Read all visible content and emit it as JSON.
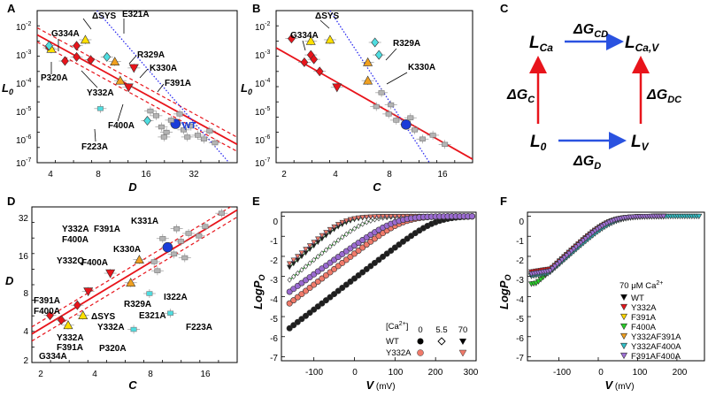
{
  "colors": {
    "fit": "#e8141b",
    "dotted": "#2a2af0",
    "diamond_red": "#e8141b",
    "triangle_yellow": "#ffe000",
    "triangle_orange": "#f0a020",
    "diamond_cyan": "#4fdde0",
    "square_cyan": "#3cc8cc",
    "wt_blue": "#1a3cd8",
    "grey": "#b4b4b4",
    "green": "#1e8a1e",
    "salmon": "#f07a6a",
    "purple": "#9a6ad0",
    "teal": "#30b0b8"
  },
  "panels": {
    "A": {
      "label": "A",
      "xlabel": "D",
      "ylabel": "L0",
      "ylabel_main": "L",
      "ylabel_sub": "0",
      "xticks": [
        "4",
        "8",
        "16",
        "32"
      ],
      "yticks_mant": [
        "10",
        "10",
        "10",
        "10",
        "10",
        "10"
      ],
      "yticks_exp": [
        "-2",
        "-3",
        "-4",
        "-5",
        "-6",
        "-7"
      ]
    },
    "B": {
      "label": "B",
      "xlabel": "C",
      "ylabel_main": "L",
      "ylabel_sub": "0",
      "xticks": [
        "2",
        "4",
        "8",
        "16"
      ],
      "yticks_mant": [
        "10",
        "10",
        "10",
        "10",
        "10",
        "10"
      ],
      "yticks_exp": [
        "-2",
        "-3",
        "-4",
        "-5",
        "-6",
        "-7"
      ]
    },
    "C": {
      "label": "C"
    },
    "D": {
      "label": "D",
      "xlabel": "C",
      "ylabel": "D",
      "xticks": [
        "2",
        "4",
        "8",
        "16"
      ],
      "yticks": [
        "32",
        "16",
        "8",
        "4",
        "2"
      ]
    },
    "E": {
      "label": "E",
      "xlabel": "V (mV)",
      "xlabel_var": "V",
      "xlabel_unit": " (mV)",
      "ylabel": "LogPO",
      "ylabel_main": "LogP",
      "ylabel_sub": "O",
      "xticks": [
        "-100",
        "0",
        "100",
        "200",
        "300"
      ],
      "yticks": [
        "0",
        "-1",
        "-2",
        "-3",
        "-4",
        "-5",
        "-6",
        "-7"
      ]
    },
    "F": {
      "label": "F",
      "xlabel_var": "V",
      "xlabel_unit": " (mV)",
      "ylabel_main": "LogP",
      "ylabel_sub": "O",
      "xticks": [
        "-100",
        "0",
        "100",
        "200"
      ],
      "yticks": [
        "0",
        "-1",
        "-2",
        "-3",
        "-4",
        "-5",
        "-6",
        "-7"
      ]
    }
  },
  "annotations": {
    "A": {
      "dsys": "ΔSYS",
      "e321a": "E321A",
      "g334a": "G334A",
      "r329a": "R329A",
      "k330a": "K330A",
      "f391a": "F391A",
      "p320a": "P320A",
      "y332a": "Y332A",
      "wt": "WT",
      "f400a": "F400A",
      "f223a": "F223A"
    },
    "B": {
      "dsys": "ΔSYS",
      "g334a": "G334A",
      "r329a": "R329A",
      "k330a": "K330A"
    },
    "D": {
      "y332a_f391a_top": "Y332A",
      "f391a_top": "F391A",
      "f400a_top": "F400A",
      "k331a": "K331A",
      "k330a": "K330A",
      "y332q": "Y332Q",
      "f400a_mid": "F400A",
      "f391a_left": "F391A",
      "f400a_left": "F400A",
      "dsys": "ΔSYS",
      "y332a_mid": "Y332A",
      "r329a": "R329A",
      "i322a": "I322A",
      "e321a": "E321A",
      "y332a_low": "Y332A",
      "f391a_low": "F391A",
      "g334a": "G334A",
      "p320a": "P320A",
      "f223a": "F223A"
    }
  },
  "scheme": {
    "l_ca_main": "L",
    "l_ca_sub": "Ca",
    "l_cav_main": "L",
    "l_cav_sub": "Ca,V",
    "l0_main": "L",
    "l0_sub": "0",
    "lv_main": "L",
    "lv_sub": "V",
    "dg_cd_main": "ΔG",
    "dg_cd_sub": "CD",
    "dg_c_main": "ΔG",
    "dg_c_sub": "C",
    "dg_dc_main": "ΔG",
    "dg_dc_sub": "DC",
    "dg_d_main": "ΔG",
    "dg_d_sub": "D"
  },
  "legend_E": {
    "ca_label": "[Ca2+]",
    "ca_main": "[Ca",
    "ca_sup": "2+",
    "ca_close": "]",
    "conc": [
      "0",
      "5.5",
      "70"
    ],
    "rows": [
      {
        "name": "WT"
      },
      {
        "name": "Y332A"
      }
    ]
  },
  "legend_F": {
    "title_main": "70 μM Ca",
    "title_sup": "2+",
    "entries": [
      {
        "name": "WT",
        "color": "#000000"
      },
      {
        "name": "Y332A",
        "color": "#e8141b"
      },
      {
        "name": "F391A",
        "color": "#ffd800"
      },
      {
        "name": "F400A",
        "color": "#28d028"
      },
      {
        "name": "Y332AF391A",
        "color": "#f0a020"
      },
      {
        "name": "Y332AF400A",
        "color": "#30c0c8"
      },
      {
        "name": "F391AF400A",
        "color": "#a070d8"
      }
    ]
  },
  "chart_data": [
    {
      "panel": "A",
      "type": "scatter",
      "xlabel": "D",
      "ylabel": "L0",
      "xscale": "log",
      "yscale": "log",
      "xlim": [
        3,
        40
      ],
      "ylim": [
        1e-07,
        0.01
      ],
      "fit_line": {
        "x": [
          3,
          40
        ],
        "y": [
          0.0016,
          4e-07
        ]
      },
      "dotted_line": {
        "x": [
          6.5,
          36
        ],
        "y": [
          0.01,
          1e-07
        ]
      },
      "points": [
        {
          "x": 3.5,
          "y": 0.0006,
          "shape": "diamond",
          "color": "red"
        },
        {
          "x": 3.6,
          "y": 0.00055,
          "shape": "triangle",
          "color": "yellow"
        },
        {
          "x": 3.5,
          "y": 0.0007,
          "shape": "diamond",
          "color": "cyan"
        },
        {
          "x": 4.3,
          "y": 0.00022,
          "shape": "diamond",
          "color": "red"
        },
        {
          "x": 5.0,
          "y": 0.0003,
          "shape": "diamond",
          "color": "red"
        },
        {
          "x": 5.0,
          "y": 0.0007,
          "shape": "diamond",
          "color": "red"
        },
        {
          "x": 5.6,
          "y": 0.0011,
          "shape": "triangle",
          "color": "yellow"
        },
        {
          "x": 6.0,
          "y": 0.00024,
          "shape": "diamond",
          "color": "red"
        },
        {
          "x": 7.4,
          "y": 0.0003,
          "shape": "diamond",
          "color": "cyan"
        },
        {
          "x": 8.2,
          "y": 0.00021,
          "shape": "triangle",
          "color": "orange"
        },
        {
          "x": 8.8,
          "y": 5e-05,
          "shape": "triangle",
          "color": "orange"
        },
        {
          "x": 10.5,
          "y": 0.00013,
          "shape": "triangle_down",
          "color": "red"
        },
        {
          "x": 9.8,
          "y": 3e-05,
          "shape": "triangle_down",
          "color": "red"
        },
        {
          "x": 6.8,
          "y": 6e-06,
          "shape": "square",
          "color": "cyan"
        },
        {
          "x": 12.5,
          "y": 2.4e-06,
          "shape": "diamond",
          "color": "cyan"
        },
        {
          "x": 18,
          "y": 1.9e-06,
          "shape": "circle",
          "color": "wt_blue"
        },
        {
          "x": 15,
          "y": 1.5e-06,
          "shape": "square",
          "color": "grey"
        },
        {
          "x": 16,
          "y": 1e-06,
          "shape": "square",
          "color": "grey"
        },
        {
          "x": 17,
          "y": 2.5e-06,
          "shape": "square",
          "color": "grey"
        },
        {
          "x": 20,
          "y": 1.2e-06,
          "shape": "square",
          "color": "grey"
        },
        {
          "x": 22,
          "y": 1.6e-06,
          "shape": "square",
          "color": "grey"
        },
        {
          "x": 24,
          "y": 8e-07,
          "shape": "square",
          "color": "grey"
        },
        {
          "x": 26,
          "y": 6e-07,
          "shape": "square",
          "color": "grey"
        },
        {
          "x": 14,
          "y": 3.5e-06,
          "shape": "square",
          "color": "grey"
        },
        {
          "x": 13,
          "y": 5e-06,
          "shape": "square",
          "color": "grey"
        },
        {
          "x": 19,
          "y": 4e-06,
          "shape": "square",
          "color": "grey"
        },
        {
          "x": 28,
          "y": 1.1e-06,
          "shape": "square",
          "color": "grey"
        },
        {
          "x": 21,
          "y": 7e-07,
          "shape": "square",
          "color": "grey"
        },
        {
          "x": 30,
          "y": 4.5e-07,
          "shape": "square",
          "color": "grey"
        },
        {
          "x": 15.5,
          "y": 7e-07,
          "shape": "square",
          "color": "grey"
        }
      ]
    },
    {
      "panel": "B",
      "type": "scatter",
      "xlabel": "C",
      "ylabel": "L0",
      "xscale": "log",
      "yscale": "log",
      "xlim": [
        1.6,
        20
      ],
      "ylim": [
        1e-07,
        0.01
      ],
      "fit_line": {
        "x": [
          1.6,
          20
        ],
        "y": [
          0.0006,
          1.3e-07
        ]
      },
      "dotted_line": {
        "x": [
          3.2,
          11.5
        ],
        "y": [
          0.01,
          1e-07
        ]
      },
      "points": [
        {
          "x": 1.95,
          "y": 0.0012,
          "shape": "diamond",
          "color": "red"
        },
        {
          "x": 2.5,
          "y": 0.001,
          "shape": "triangle",
          "color": "yellow"
        },
        {
          "x": 2.5,
          "y": 0.00035,
          "shape": "diamond",
          "color": "red"
        },
        {
          "x": 2.6,
          "y": 0.00025,
          "shape": "diamond",
          "color": "red"
        },
        {
          "x": 2.3,
          "y": 0.0002,
          "shape": "diamond",
          "color": "red"
        },
        {
          "x": 2.8,
          "y": 0.0001,
          "shape": "diamond",
          "color": "red"
        },
        {
          "x": 3.2,
          "y": 0.0011,
          "shape": "triangle",
          "color": "yellow"
        },
        {
          "x": 3.5,
          "y": 3e-05,
          "shape": "triangle_down",
          "color": "red"
        },
        {
          "x": 5.2,
          "y": 0.0002,
          "shape": "triangle",
          "color": "orange"
        },
        {
          "x": 5.2,
          "y": 5e-05,
          "shape": "triangle",
          "color": "orange"
        },
        {
          "x": 5.7,
          "y": 0.0009,
          "shape": "diamond",
          "color": "cyan"
        },
        {
          "x": 6.0,
          "y": 0.00035,
          "shape": "diamond",
          "color": "cyan"
        },
        {
          "x": 6.2,
          "y": 2e-05,
          "shape": "square",
          "color": "grey"
        },
        {
          "x": 8.5,
          "y": 1.8e-06,
          "shape": "circle",
          "color": "wt_blue"
        },
        {
          "x": 7.5,
          "y": 2.5e-06,
          "shape": "square",
          "color": "grey"
        },
        {
          "x": 9.5,
          "y": 1.2e-06,
          "shape": "square",
          "color": "grey"
        },
        {
          "x": 6.8,
          "y": 4e-06,
          "shape": "square",
          "color": "grey"
        },
        {
          "x": 10.5,
          "y": 6e-07,
          "shape": "square",
          "color": "grey"
        },
        {
          "x": 12,
          "y": 8e-07,
          "shape": "square",
          "color": "grey"
        },
        {
          "x": 5.8,
          "y": 7e-06,
          "shape": "square",
          "color": "grey"
        },
        {
          "x": 14,
          "y": 4e-07,
          "shape": "square",
          "color": "grey"
        },
        {
          "x": 7.0,
          "y": 8e-06,
          "shape": "square",
          "color": "grey"
        },
        {
          "x": 9.0,
          "y": 3e-06,
          "shape": "square",
          "color": "grey"
        }
      ]
    },
    {
      "panel": "D",
      "type": "scatter",
      "xlabel": "C",
      "ylabel": "D",
      "xscale": "log",
      "yscale": "log",
      "xlim": [
        1.6,
        20
      ],
      "ylim": [
        2,
        36
      ],
      "fit_line": {
        "x": [
          1.6,
          20
        ],
        "y": [
          3.4,
          34
        ]
      },
      "points": [
        {
          "x": 2.0,
          "y": 4.8,
          "shape": "diamond",
          "color": "red"
        },
        {
          "x": 2.3,
          "y": 4.4,
          "shape": "diamond",
          "color": "red"
        },
        {
          "x": 2.5,
          "y": 4.0,
          "shape": "triangle",
          "color": "yellow"
        },
        {
          "x": 2.8,
          "y": 5.8,
          "shape": "diamond",
          "color": "red"
        },
        {
          "x": 3.0,
          "y": 4.8,
          "shape": "triangle",
          "color": "yellow"
        },
        {
          "x": 3.2,
          "y": 7.5,
          "shape": "triangle_down",
          "color": "red"
        },
        {
          "x": 4.2,
          "y": 10.5,
          "shape": "triangle_down",
          "color": "red"
        },
        {
          "x": 5.4,
          "y": 8.8,
          "shape": "triangle",
          "color": "orange"
        },
        {
          "x": 6.0,
          "y": 13.5,
          "shape": "triangle",
          "color": "orange"
        },
        {
          "x": 5.6,
          "y": 3.7,
          "shape": "square",
          "color": "cyan"
        },
        {
          "x": 6.8,
          "y": 7.2,
          "shape": "square",
          "color": "cyan"
        },
        {
          "x": 8.8,
          "y": 5.0,
          "shape": "square",
          "color": "cyan"
        },
        {
          "x": 8.5,
          "y": 17,
          "shape": "circle",
          "color": "wt_blue"
        },
        {
          "x": 7.2,
          "y": 13,
          "shape": "square",
          "color": "grey"
        },
        {
          "x": 9.2,
          "y": 15,
          "shape": "square",
          "color": "grey"
        },
        {
          "x": 10,
          "y": 19,
          "shape": "square",
          "color": "grey"
        },
        {
          "x": 11,
          "y": 22,
          "shape": "square",
          "color": "grey"
        },
        {
          "x": 12.5,
          "y": 21,
          "shape": "square",
          "color": "grey"
        },
        {
          "x": 8,
          "y": 20,
          "shape": "square",
          "color": "grey"
        },
        {
          "x": 13.5,
          "y": 25,
          "shape": "square",
          "color": "grey"
        },
        {
          "x": 7.5,
          "y": 11,
          "shape": "square",
          "color": "grey"
        },
        {
          "x": 16.5,
          "y": 32,
          "shape": "square",
          "color": "grey"
        },
        {
          "x": 9.5,
          "y": 24,
          "shape": "square",
          "color": "grey"
        },
        {
          "x": 10.5,
          "y": 14,
          "shape": "square",
          "color": "grey"
        }
      ]
    },
    {
      "panel": "E",
      "type": "line",
      "xlabel": "V (mV)",
      "ylabel": "LogPO",
      "xlim": [
        -180,
        300
      ],
      "ylim": [
        -7.2,
        0.2
      ],
      "series": [
        {
          "name": "WT 0 Ca",
          "marker": "circle_black",
          "vh": 200,
          "k": 28,
          "lmin": -6.8
        },
        {
          "name": "Y332A 0 Ca",
          "marker": "circle_salmon",
          "vh": 120,
          "k": 28,
          "lmin": -4.7
        },
        {
          "name": "WT 5.5 Ca",
          "marker": "diamond_open",
          "vh": 30,
          "k": 26,
          "lmin": -4.6
        },
        {
          "name": "WT 70 Ca",
          "marker": "triangle_black",
          "vh": -20,
          "k": 24,
          "lmin": -3.3
        },
        {
          "name": "Y332A 70 Ca",
          "marker": "triangle_salmon",
          "vh": -30,
          "k": 24,
          "lmin": -2.8
        },
        {
          "name": "Y332A 5.5 Ca",
          "marker": "circle_purple",
          "vh": 100,
          "k": 30,
          "lmin": -4.6
        }
      ]
    },
    {
      "panel": "F",
      "type": "line",
      "xlabel": "V (mV)",
      "ylabel": "LogPO",
      "xlim": [
        -180,
        270
      ],
      "ylim": [
        -7.2,
        0.2
      ],
      "series": [
        {
          "name": "WT",
          "vh": 30,
          "k": 24,
          "lmin": -2.9
        },
        {
          "name": "Y332A",
          "vh": 25,
          "k": 24,
          "lmin": -2.8
        },
        {
          "name": "F391A",
          "vh": 28,
          "k": 24,
          "lmin": -2.9
        },
        {
          "name": "F400A",
          "vh": 35,
          "k": 25,
          "lmin": -3.4
        },
        {
          "name": "Y332AF391A",
          "vh": 30,
          "k": 24,
          "lmin": -3.0
        },
        {
          "name": "Y332AF400A",
          "vh": 38,
          "k": 25,
          "lmin": -3.0
        },
        {
          "name": "F391AF400A",
          "vh": 28,
          "k": 24,
          "lmin": -2.9
        }
      ]
    }
  ]
}
